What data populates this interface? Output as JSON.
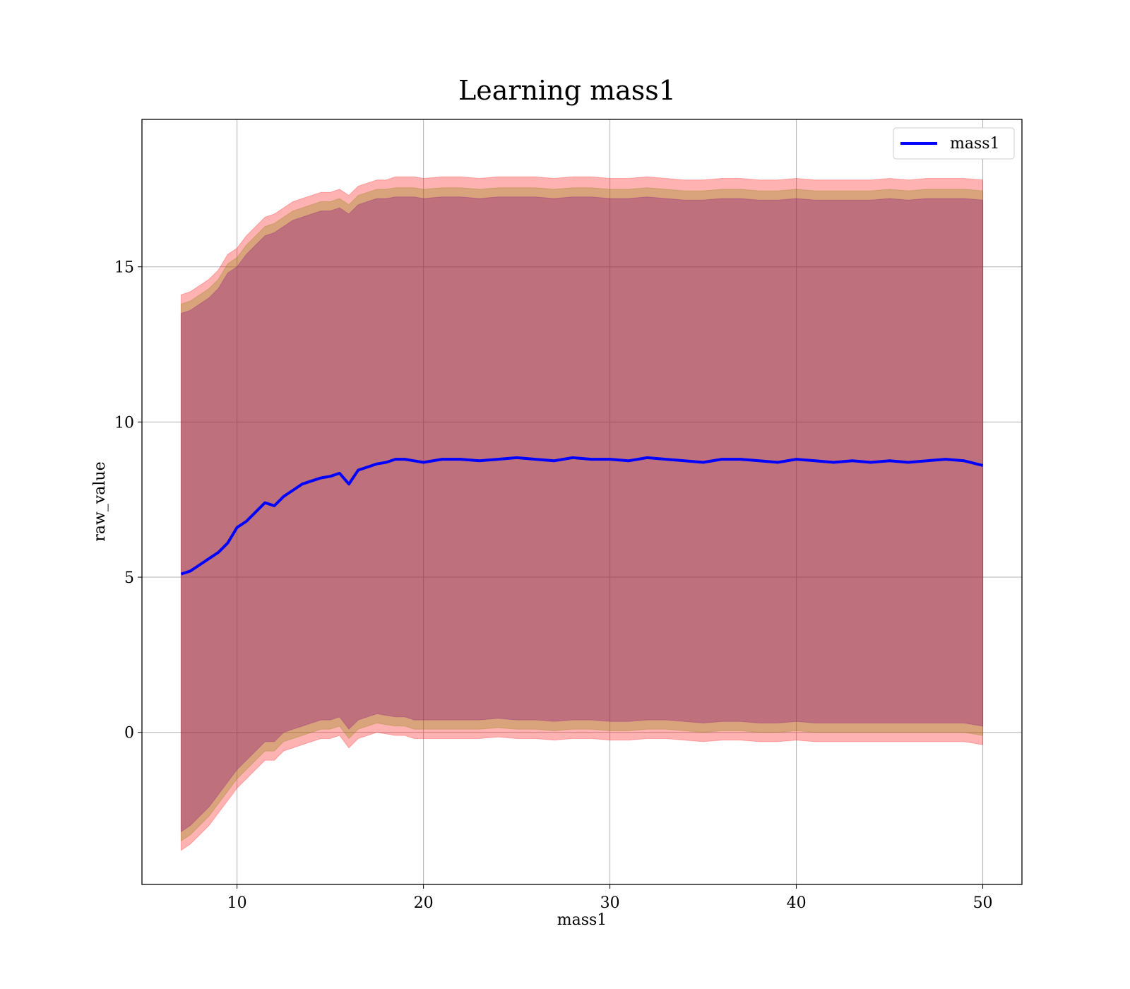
{
  "chart_data": {
    "type": "line",
    "title": "Learning mass1",
    "xlabel": "mass1",
    "ylabel": "raw_value",
    "xlim": [
      4.9,
      52.1
    ],
    "ylim": [
      -4.9,
      19.75
    ],
    "x_ticks": [
      10,
      20,
      30,
      40,
      50
    ],
    "y_ticks": [
      0,
      5,
      10,
      15
    ],
    "grid": true,
    "legend_position": "top-right",
    "series": [
      {
        "name": "mass1",
        "color": "#0000ff",
        "x": [
          7,
          7.5,
          8,
          8.5,
          9,
          9.5,
          10,
          10.5,
          11,
          11.5,
          12,
          12.5,
          13,
          13.5,
          14,
          14.5,
          15,
          15.5,
          16,
          16.5,
          17,
          17.5,
          18,
          18.5,
          19,
          19.5,
          20,
          21,
          22,
          23,
          24,
          25,
          26,
          27,
          28,
          29,
          30,
          31,
          32,
          33,
          34,
          35,
          36,
          37,
          38,
          39,
          40,
          41,
          42,
          43,
          44,
          45,
          46,
          47,
          48,
          49,
          50
        ],
        "y": [
          5.1,
          5.2,
          5.4,
          5.6,
          5.8,
          6.1,
          6.6,
          6.8,
          7.1,
          7.4,
          7.3,
          7.6,
          7.8,
          8.0,
          8.1,
          8.2,
          8.25,
          8.35,
          8.0,
          8.45,
          8.55,
          8.65,
          8.7,
          8.8,
          8.8,
          8.75,
          8.7,
          8.8,
          8.8,
          8.75,
          8.8,
          8.85,
          8.8,
          8.75,
          8.85,
          8.8,
          8.8,
          8.75,
          8.85,
          8.8,
          8.75,
          8.7,
          8.8,
          8.8,
          8.75,
          8.7,
          8.8,
          8.75,
          8.7,
          8.75,
          8.7,
          8.75,
          8.7,
          8.75,
          8.8,
          8.75,
          8.6
        ]
      }
    ],
    "bands": [
      {
        "color": "#ff0000",
        "alpha": 0.3,
        "upper": [
          14.1,
          14.2,
          14.4,
          14.6,
          14.9,
          15.4,
          15.6,
          16.0,
          16.3,
          16.6,
          16.7,
          16.9,
          17.1,
          17.2,
          17.3,
          17.4,
          17.4,
          17.5,
          17.3,
          17.6,
          17.7,
          17.8,
          17.8,
          17.9,
          17.9,
          17.9,
          17.85,
          17.9,
          17.9,
          17.85,
          17.9,
          17.9,
          17.9,
          17.85,
          17.9,
          17.9,
          17.85,
          17.85,
          17.9,
          17.85,
          17.8,
          17.8,
          17.85,
          17.85,
          17.8,
          17.8,
          17.85,
          17.8,
          17.8,
          17.8,
          17.8,
          17.85,
          17.8,
          17.85,
          17.85,
          17.85,
          17.8
        ],
        "lower": [
          -3.8,
          -3.6,
          -3.3,
          -3.0,
          -2.6,
          -2.2,
          -1.8,
          -1.5,
          -1.2,
          -0.9,
          -0.9,
          -0.6,
          -0.5,
          -0.4,
          -0.3,
          -0.2,
          -0.2,
          -0.1,
          -0.5,
          -0.2,
          -0.1,
          0.0,
          -0.05,
          -0.1,
          -0.1,
          -0.2,
          -0.2,
          -0.2,
          -0.2,
          -0.2,
          -0.15,
          -0.2,
          -0.2,
          -0.25,
          -0.2,
          -0.2,
          -0.25,
          -0.25,
          -0.2,
          -0.2,
          -0.25,
          -0.3,
          -0.25,
          -0.25,
          -0.3,
          -0.3,
          -0.25,
          -0.3,
          -0.3,
          -0.3,
          -0.3,
          -0.3,
          -0.3,
          -0.3,
          -0.3,
          -0.3,
          -0.4
        ]
      },
      {
        "color": "#808000",
        "alpha": 0.3,
        "upper": [
          13.8,
          13.9,
          14.1,
          14.3,
          14.6,
          15.1,
          15.3,
          15.7,
          16.0,
          16.3,
          16.4,
          16.6,
          16.8,
          16.9,
          17.0,
          17.1,
          17.1,
          17.2,
          17.0,
          17.3,
          17.4,
          17.5,
          17.5,
          17.55,
          17.55,
          17.55,
          17.5,
          17.55,
          17.55,
          17.5,
          17.55,
          17.55,
          17.55,
          17.5,
          17.55,
          17.55,
          17.5,
          17.5,
          17.55,
          17.5,
          17.45,
          17.45,
          17.5,
          17.5,
          17.45,
          17.45,
          17.5,
          17.45,
          17.45,
          17.45,
          17.45,
          17.5,
          17.45,
          17.5,
          17.5,
          17.5,
          17.45
        ],
        "lower": [
          -3.5,
          -3.3,
          -3.0,
          -2.7,
          -2.3,
          -1.9,
          -1.5,
          -1.2,
          -0.9,
          -0.6,
          -0.6,
          -0.3,
          -0.2,
          -0.1,
          0.0,
          0.1,
          0.1,
          0.2,
          -0.2,
          0.1,
          0.2,
          0.3,
          0.25,
          0.2,
          0.2,
          0.1,
          0.1,
          0.1,
          0.1,
          0.1,
          0.15,
          0.1,
          0.1,
          0.05,
          0.1,
          0.1,
          0.05,
          0.05,
          0.1,
          0.1,
          0.05,
          0.0,
          0.05,
          0.05,
          0.0,
          0.0,
          0.05,
          0.0,
          0.0,
          0.0,
          0.0,
          0.0,
          0.0,
          0.0,
          0.0,
          0.0,
          -0.1
        ]
      },
      {
        "color": "#800080",
        "alpha": 0.3,
        "upper": [
          13.5,
          13.6,
          13.8,
          14.0,
          14.3,
          14.8,
          15.0,
          15.4,
          15.7,
          16.0,
          16.1,
          16.3,
          16.5,
          16.6,
          16.7,
          16.8,
          16.8,
          16.9,
          16.7,
          17.0,
          17.1,
          17.2,
          17.2,
          17.25,
          17.25,
          17.25,
          17.2,
          17.25,
          17.25,
          17.2,
          17.25,
          17.25,
          17.25,
          17.2,
          17.25,
          17.25,
          17.2,
          17.2,
          17.25,
          17.2,
          17.15,
          17.15,
          17.2,
          17.2,
          17.15,
          17.15,
          17.2,
          17.15,
          17.15,
          17.15,
          17.15,
          17.2,
          17.15,
          17.2,
          17.2,
          17.2,
          17.15
        ],
        "lower": [
          -3.2,
          -3.0,
          -2.7,
          -2.4,
          -2.0,
          -1.6,
          -1.2,
          -0.9,
          -0.6,
          -0.3,
          -0.3,
          0.0,
          0.1,
          0.2,
          0.3,
          0.4,
          0.4,
          0.5,
          0.1,
          0.4,
          0.5,
          0.6,
          0.55,
          0.5,
          0.5,
          0.4,
          0.4,
          0.4,
          0.4,
          0.4,
          0.45,
          0.4,
          0.4,
          0.35,
          0.4,
          0.4,
          0.35,
          0.35,
          0.4,
          0.4,
          0.35,
          0.3,
          0.35,
          0.35,
          0.3,
          0.3,
          0.35,
          0.3,
          0.3,
          0.3,
          0.3,
          0.3,
          0.3,
          0.3,
          0.3,
          0.3,
          0.2
        ]
      }
    ]
  }
}
